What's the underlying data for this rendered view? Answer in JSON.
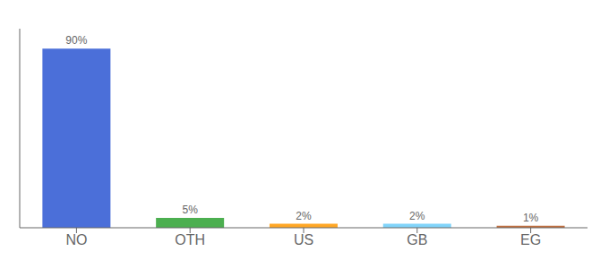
{
  "chart_data": {
    "type": "bar",
    "categories": [
      "NO",
      "OTH",
      "US",
      "GB",
      "EG"
    ],
    "values": [
      90,
      5,
      2,
      2,
      1
    ],
    "value_labels": [
      "90%",
      "5%",
      "2%",
      "2%",
      "1%"
    ],
    "colors": [
      "#4B6FD9",
      "#4CAF50",
      "#FFA726",
      "#81D4FA",
      "#C07040"
    ],
    "ylim": [
      0,
      100
    ],
    "grid": false,
    "data_labels": true,
    "tick_labels": "x"
  }
}
